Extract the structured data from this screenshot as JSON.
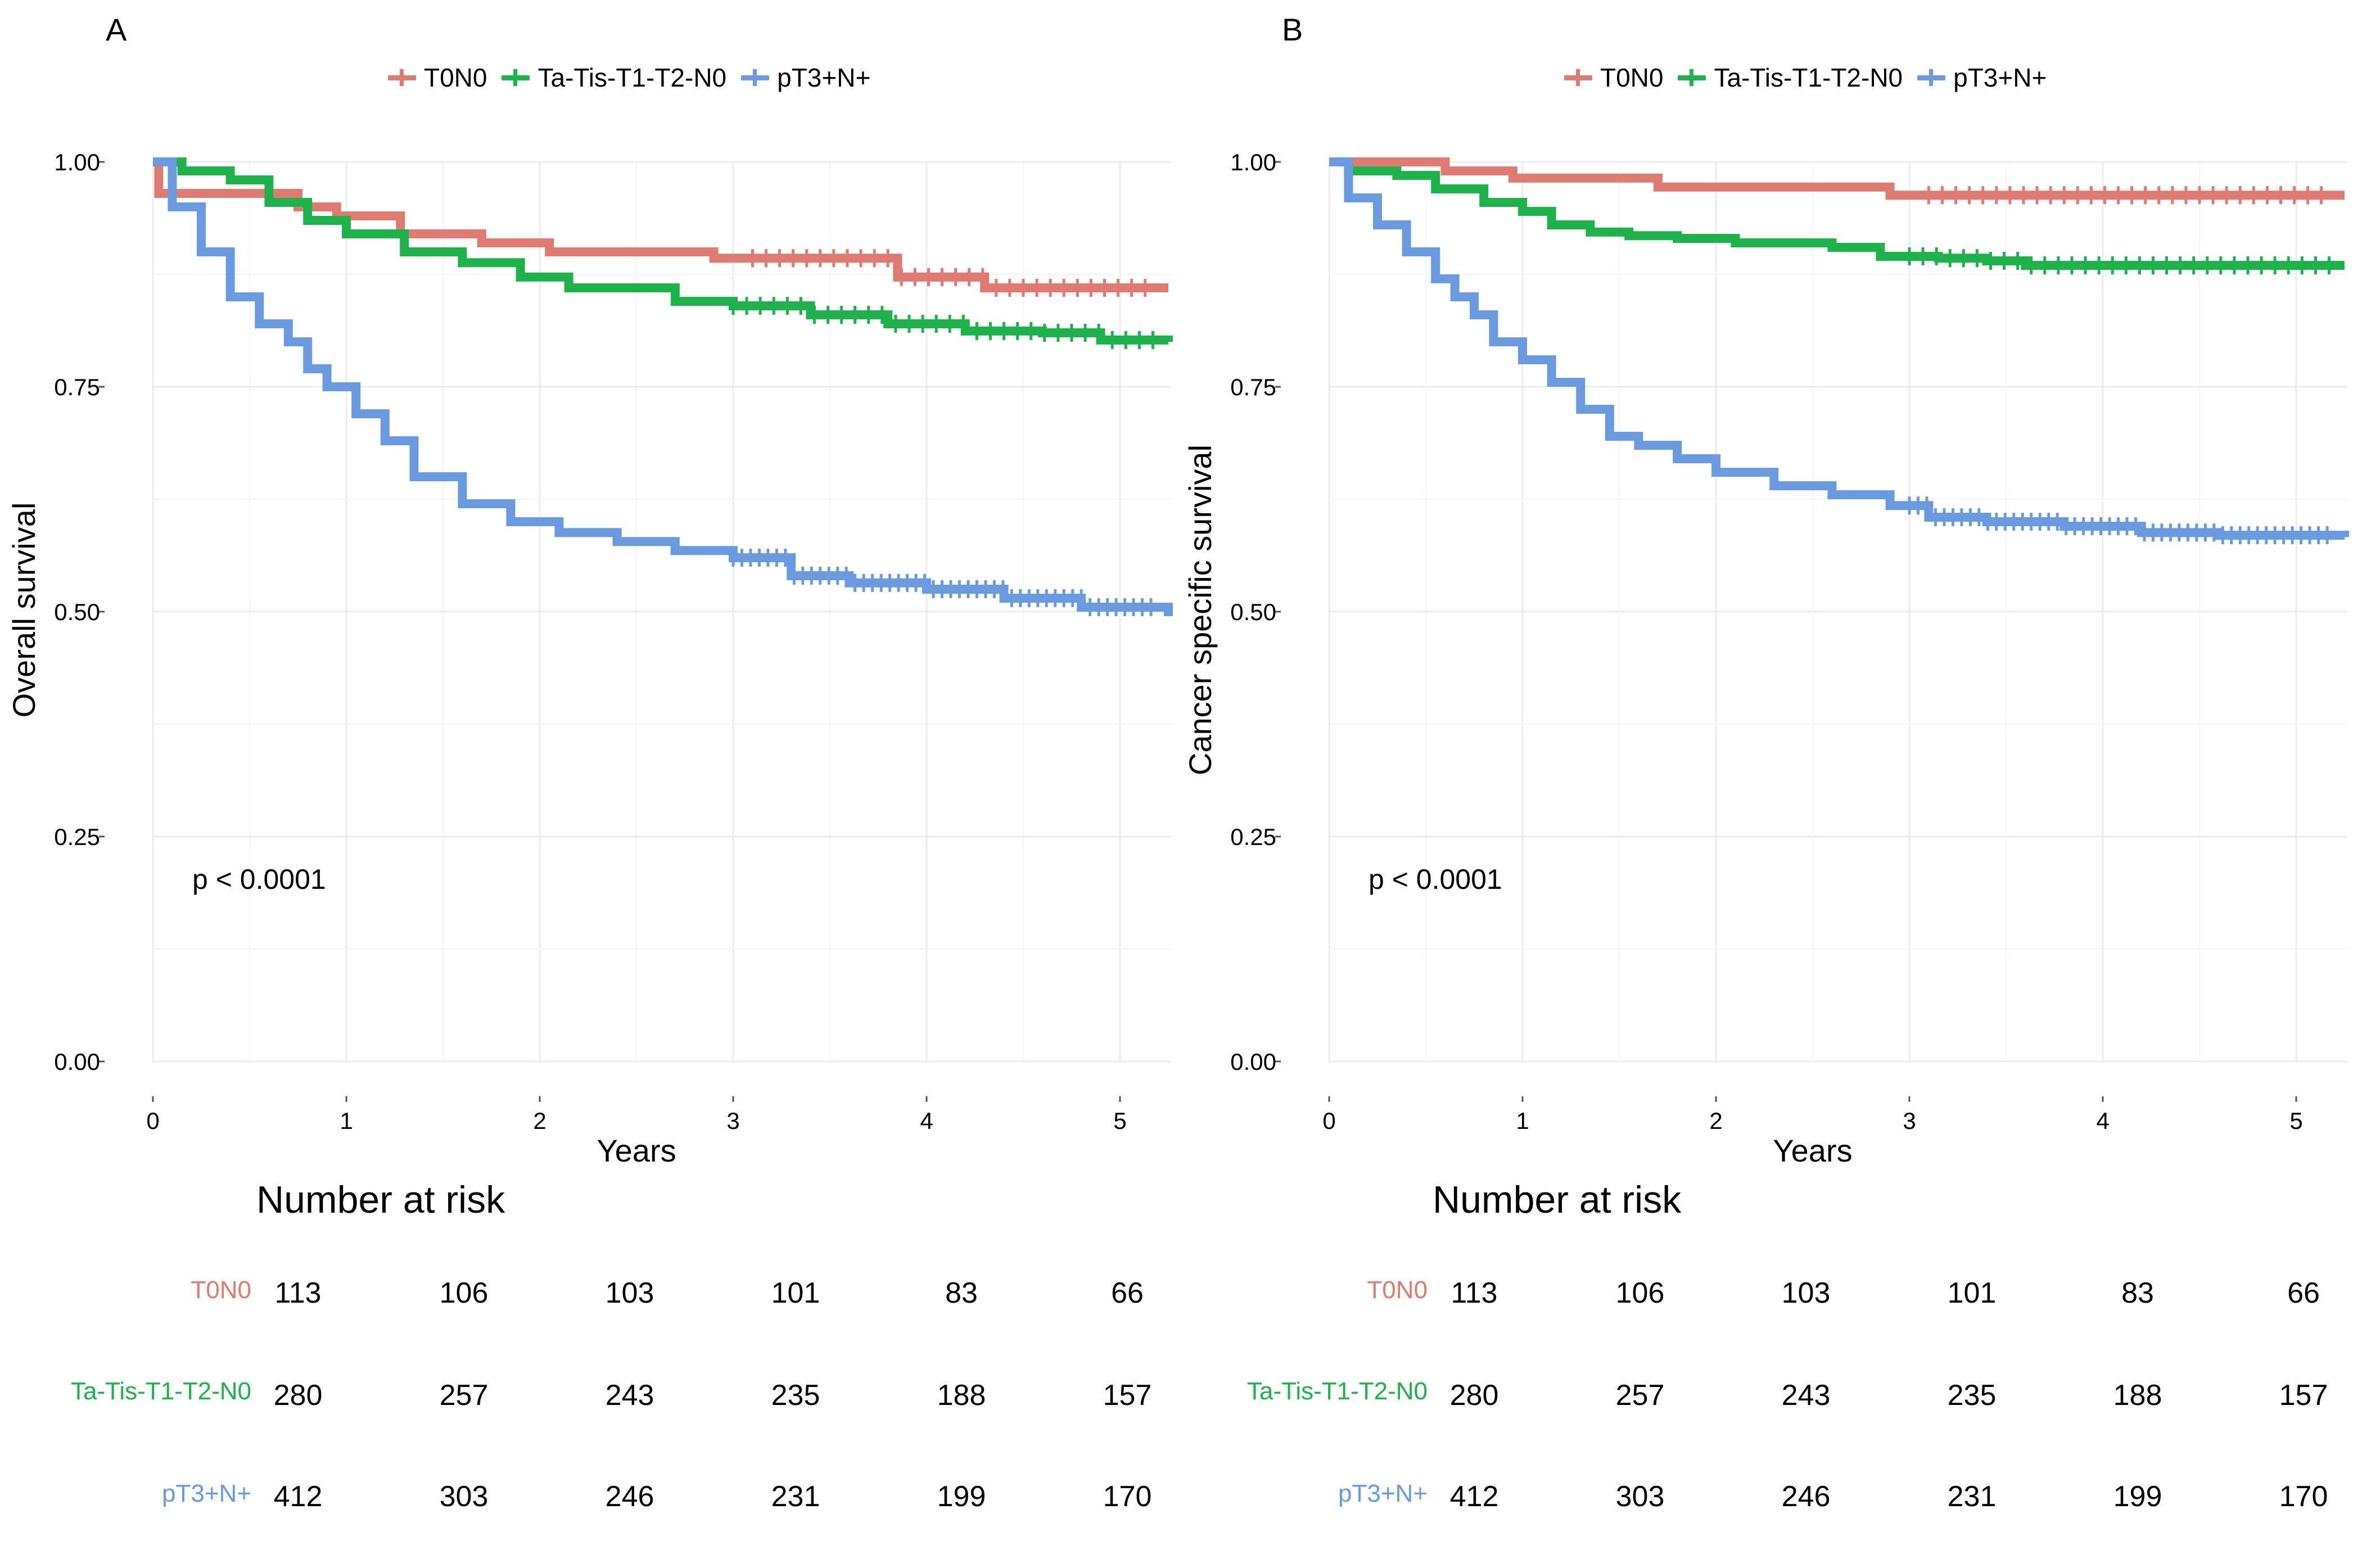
{
  "chart_data": [
    {
      "panel": "A",
      "type": "line",
      "subtype": "kaplan-meier",
      "xlabel": "Years",
      "ylabel": "Overall survival",
      "xlim": [
        0,
        5.25
      ],
      "ylim": [
        0,
        1
      ],
      "x_ticks": [
        "0",
        "1",
        "2",
        "3",
        "4",
        "5"
      ],
      "y_ticks": [
        "0.00",
        "0.25",
        "0.50",
        "0.75",
        "1.00"
      ],
      "grid": true,
      "legend_position": "top",
      "p_value": "p < 0.0001",
      "series": [
        {
          "name": "T0N0",
          "color": "#E07B72",
          "x": [
            0,
            0.03,
            0.3,
            0.75,
            0.95,
            1.28,
            1.7,
            2.05,
            2.9,
            3.85,
            4.3,
            5.25
          ],
          "y": [
            1.0,
            0.965,
            0.965,
            0.95,
            0.94,
            0.92,
            0.91,
            0.9,
            0.893,
            0.872,
            0.86,
            0.86
          ]
        },
        {
          "name": "Ta-Tis-T1-T2-N0",
          "color": "#1EB34A",
          "x": [
            0,
            0.15,
            0.4,
            0.6,
            0.8,
            1.0,
            1.3,
            1.6,
            1.9,
            2.15,
            2.5,
            2.7,
            3.0,
            3.4,
            3.8,
            4.2,
            4.6,
            4.9,
            5.25
          ],
          "y": [
            1.0,
            0.99,
            0.98,
            0.955,
            0.935,
            0.92,
            0.9,
            0.888,
            0.872,
            0.86,
            0.86,
            0.845,
            0.84,
            0.83,
            0.82,
            0.812,
            0.81,
            0.802,
            0.8
          ]
        },
        {
          "name": "pT3+N+",
          "color": "#6A9BE1",
          "x": [
            0,
            0.1,
            0.25,
            0.4,
            0.55,
            0.7,
            0.8,
            0.9,
            1.05,
            1.2,
            1.35,
            1.6,
            1.85,
            2.1,
            2.4,
            2.7,
            3.0,
            3.3,
            3.6,
            4.0,
            4.4,
            4.8,
            5.25
          ],
          "y": [
            1.0,
            0.95,
            0.9,
            0.85,
            0.82,
            0.8,
            0.77,
            0.75,
            0.72,
            0.69,
            0.65,
            0.62,
            0.6,
            0.588,
            0.578,
            0.568,
            0.56,
            0.54,
            0.532,
            0.525,
            0.515,
            0.505,
            0.495
          ]
        }
      ],
      "risk_table": {
        "title": "Number at risk",
        "times": [
          "0",
          "1",
          "2",
          "3",
          "4",
          "5"
        ],
        "rows": [
          {
            "label": "T0N0",
            "color": "#E07B72",
            "values": [
              "113",
              "106",
              "103",
              "101",
              "83",
              "66"
            ]
          },
          {
            "label": "Ta-Tis-T1-T2-N0",
            "color": "#1EB34A",
            "values": [
              "280",
              "257",
              "243",
              "235",
              "188",
              "157"
            ]
          },
          {
            "label": "pT3+N+",
            "color": "#6A9BE1",
            "values": [
              "412",
              "303",
              "246",
              "231",
              "199",
              "170"
            ]
          }
        ]
      }
    },
    {
      "panel": "B",
      "type": "line",
      "subtype": "kaplan-meier",
      "xlabel": "Years",
      "ylabel": "Cancer specific survival",
      "xlim": [
        0,
        5.25
      ],
      "ylim": [
        0,
        1
      ],
      "x_ticks": [
        "0",
        "1",
        "2",
        "3",
        "4",
        "5"
      ],
      "y_ticks": [
        "0.00",
        "0.25",
        "0.50",
        "0.75",
        "1.00"
      ],
      "grid": true,
      "legend_position": "top",
      "p_value": "p < 0.0001",
      "series": [
        {
          "name": "T0N0",
          "color": "#E07B72",
          "x": [
            0,
            0.6,
            0.95,
            1.7,
            2.9,
            5.25
          ],
          "y": [
            1.0,
            0.99,
            0.982,
            0.972,
            0.963,
            0.963
          ]
        },
        {
          "name": "Ta-Tis-T1-T2-N0",
          "color": "#1EB34A",
          "x": [
            0,
            0.1,
            0.35,
            0.55,
            0.8,
            1.0,
            1.15,
            1.35,
            1.55,
            1.8,
            2.1,
            2.6,
            2.85,
            3.15,
            3.4,
            3.6,
            4.5,
            5.25
          ],
          "y": [
            1.0,
            0.99,
            0.985,
            0.97,
            0.955,
            0.945,
            0.93,
            0.922,
            0.918,
            0.915,
            0.91,
            0.905,
            0.895,
            0.893,
            0.89,
            0.885,
            0.885,
            0.885
          ]
        },
        {
          "name": "pT3+N+",
          "color": "#6A9BE1",
          "x": [
            0,
            0.1,
            0.25,
            0.4,
            0.55,
            0.65,
            0.75,
            0.85,
            1.0,
            1.15,
            1.3,
            1.45,
            1.6,
            1.8,
            2.0,
            2.3,
            2.6,
            2.9,
            3.1,
            3.4,
            3.8,
            4.2,
            4.6,
            5.25
          ],
          "y": [
            1.0,
            0.96,
            0.93,
            0.9,
            0.87,
            0.85,
            0.83,
            0.8,
            0.78,
            0.755,
            0.725,
            0.695,
            0.685,
            0.67,
            0.655,
            0.64,
            0.63,
            0.618,
            0.605,
            0.6,
            0.595,
            0.588,
            0.585,
            0.583
          ]
        }
      ],
      "risk_table": {
        "title": "Number at risk",
        "times": [
          "0",
          "1",
          "2",
          "3",
          "4",
          "5"
        ],
        "rows": [
          {
            "label": "T0N0",
            "color": "#E07B72",
            "values": [
              "113",
              "106",
              "103",
              "101",
              "83",
              "66"
            ]
          },
          {
            "label": "Ta-Tis-T1-T2-N0",
            "color": "#1EB34A",
            "values": [
              "280",
              "257",
              "243",
              "235",
              "188",
              "157"
            ]
          },
          {
            "label": "pT3+N+",
            "color": "#6A9BE1",
            "values": [
              "412",
              "303",
              "246",
              "231",
              "199",
              "170"
            ]
          }
        ]
      }
    }
  ]
}
